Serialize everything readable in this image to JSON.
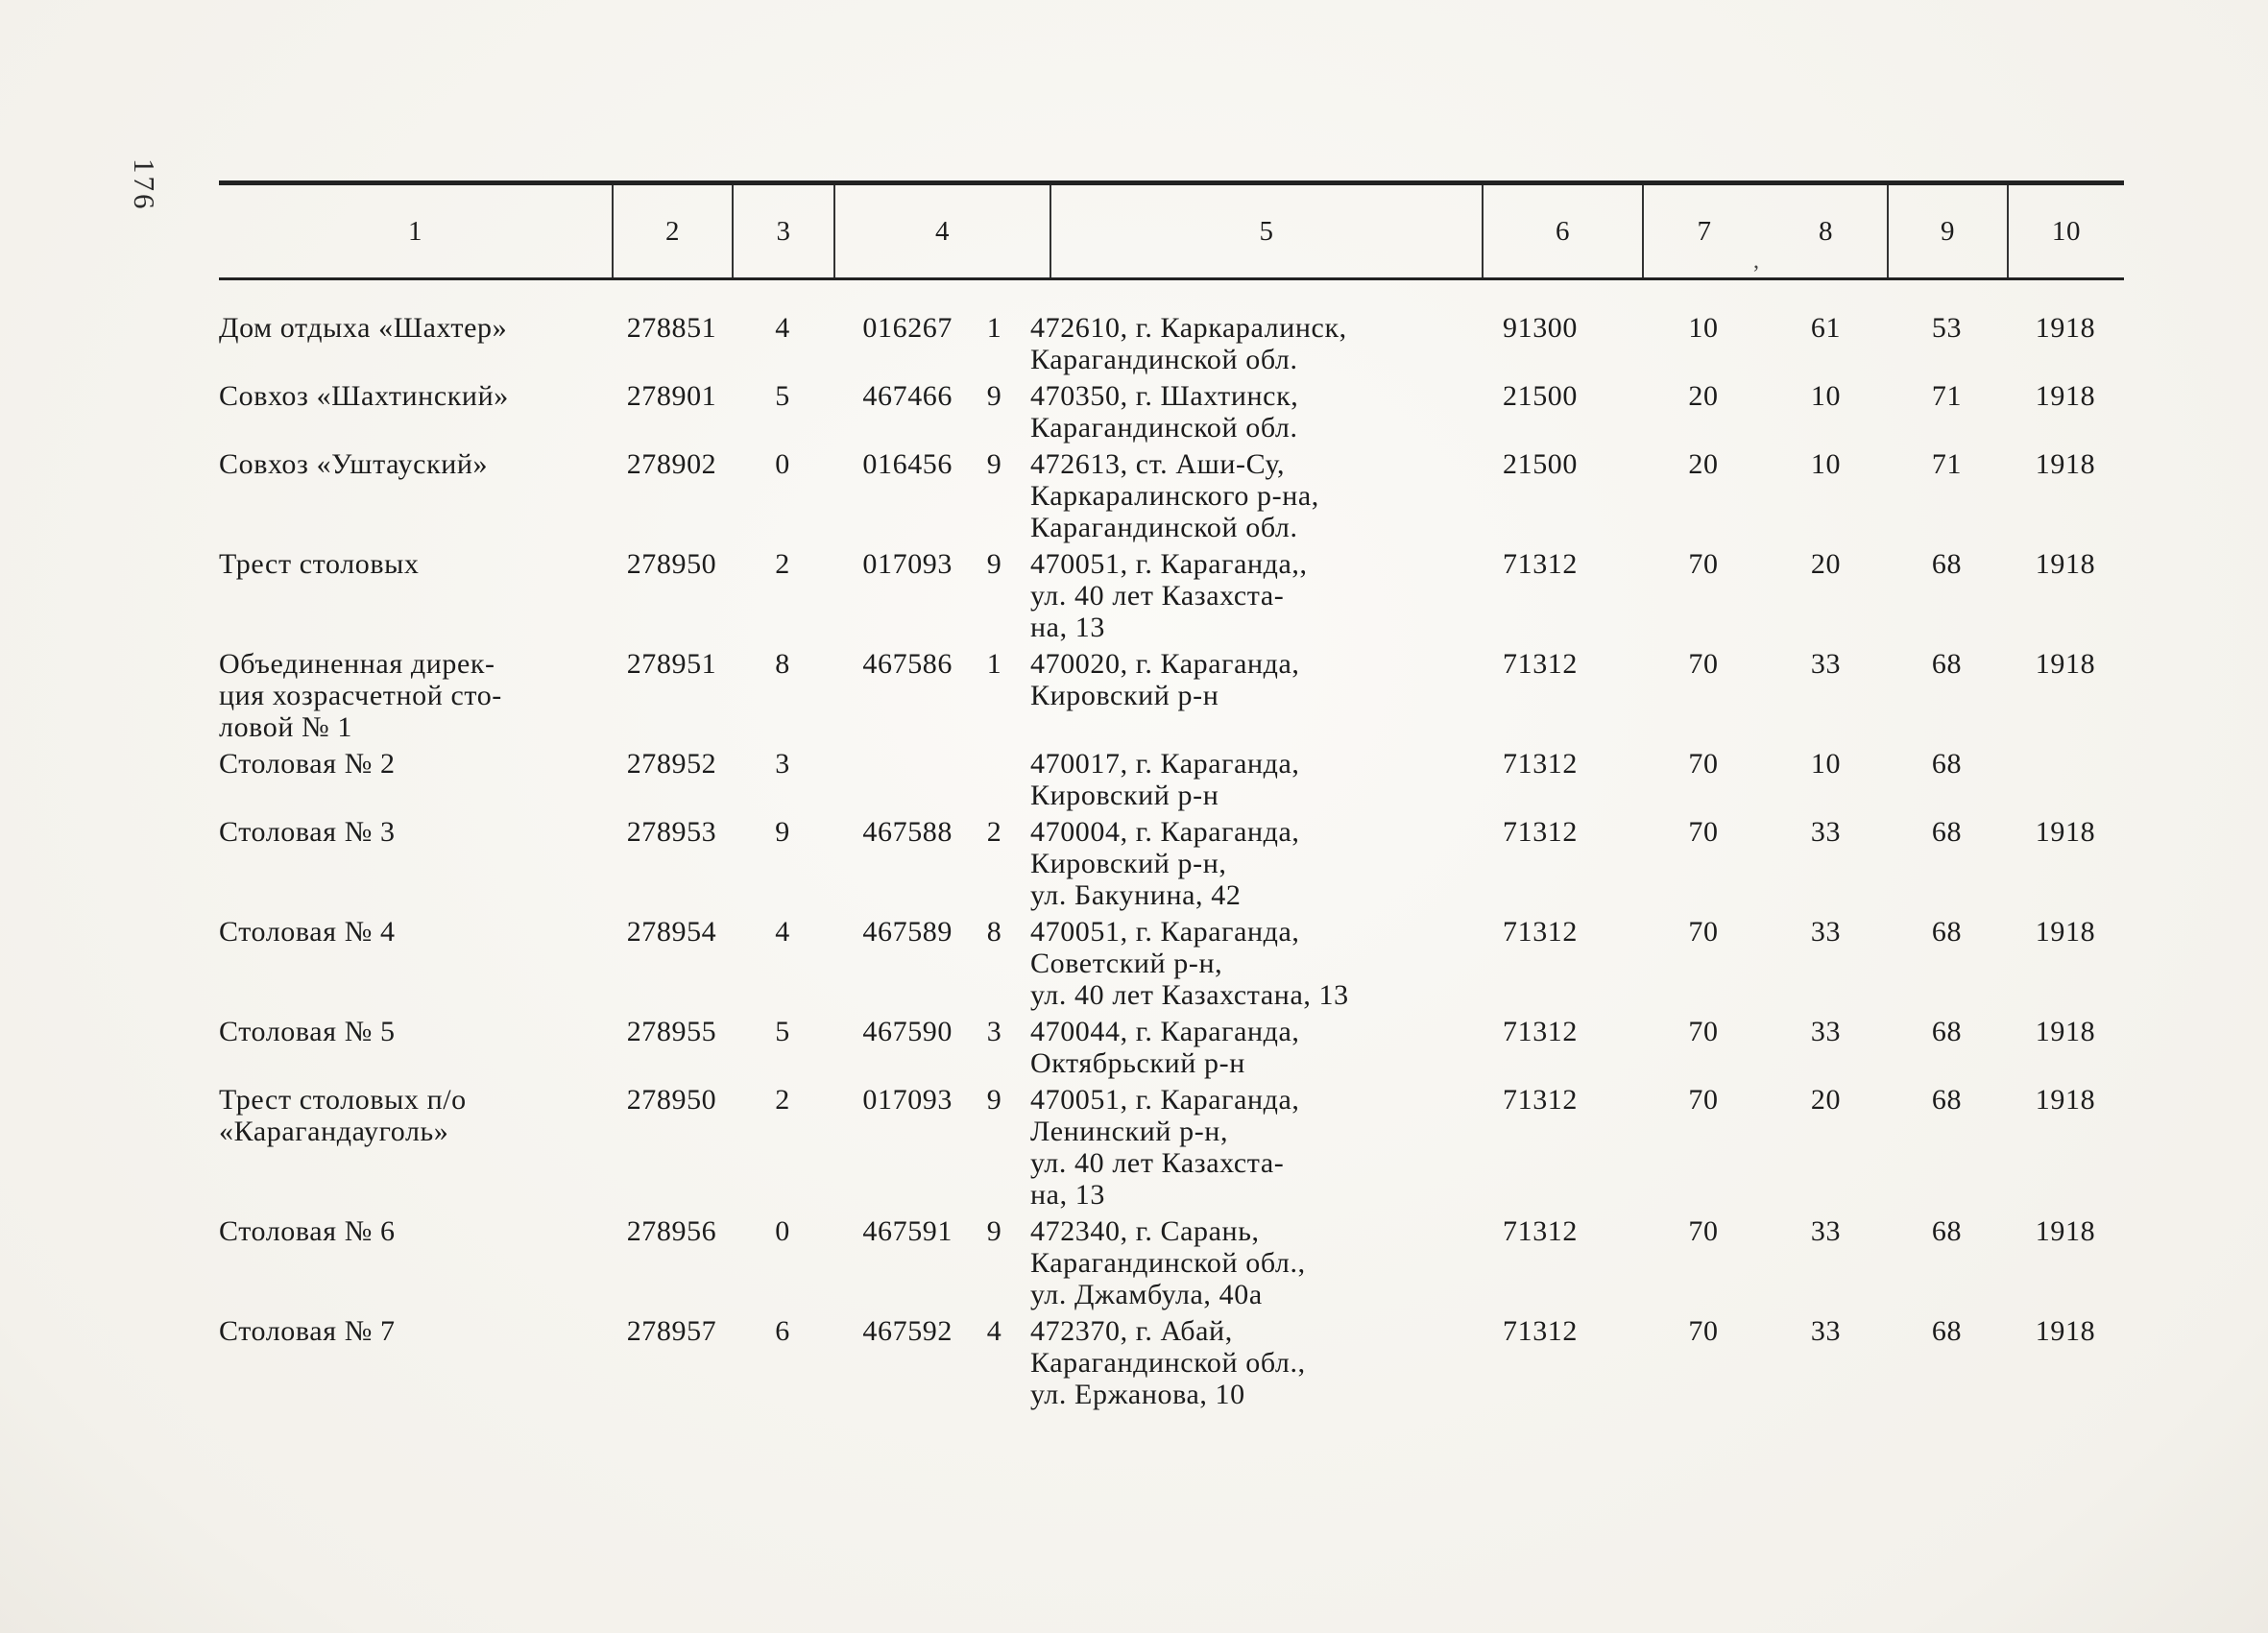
{
  "page": {
    "number": "176"
  },
  "table": {
    "header": [
      "1",
      "2",
      "3",
      "4",
      "5",
      "6",
      "7",
      "8",
      "9",
      "10"
    ],
    "header_artifact": ",",
    "rows": [
      {
        "name": [
          "Дом отдыха «Шахтер»"
        ],
        "col2": "278851",
        "col3": "4",
        "col4": "016267",
        "col4b": "1",
        "address": [
          "472610, г. Каркаралинск,",
          "Карагандинской обл."
        ],
        "col6": "91300",
        "col7": "10",
        "col8": "61",
        "col9": "53",
        "col10": "1918"
      },
      {
        "name": [
          "Совхоз «Шахтинский»"
        ],
        "col2": "278901",
        "col3": "5",
        "col4": "467466",
        "col4b": "9",
        "address": [
          "470350, г. Шахтинск,",
          "Карагандинской обл."
        ],
        "col6": "21500",
        "col7": "20",
        "col8": "10",
        "col9": "71",
        "col10": "1918"
      },
      {
        "name": [
          "Совхоз «Уштауский»"
        ],
        "col2": "278902",
        "col3": "0",
        "col4": "016456",
        "col4b": "9",
        "address": [
          "472613, ст. Аши-Су,",
          "Каркаралинского р-на,",
          "Карагандинской обл."
        ],
        "col6": "21500",
        "col7": "20",
        "col8": "10",
        "col9": "71",
        "col10": "1918"
      },
      {
        "name": [
          "Трест столовых"
        ],
        "col2": "278950",
        "col3": "2",
        "col4": "017093",
        "col4b": "9",
        "address": [
          "470051, г. Караганда,,",
          "ул. 40 лет Казахста-",
          "на, 13"
        ],
        "col6": "71312",
        "col7": "70",
        "col8": "20",
        "col9": "68",
        "col10": "1918"
      },
      {
        "name": [
          "Объединенная дирек-",
          "ция хозрасчетной сто-",
          "ловой № 1"
        ],
        "col2": "278951",
        "col3": "8",
        "col4": "467586",
        "col4b": "1",
        "address": [
          "470020, г. Караганда,",
          "Кировский р-н"
        ],
        "col6": "71312",
        "col7": "70",
        "col8": "33",
        "col9": "68",
        "col10": "1918"
      },
      {
        "name": [
          "Столовая № 2"
        ],
        "col2": "278952",
        "col3": "3",
        "col4": "",
        "col4b": "",
        "address": [
          "470017, г. Караганда,",
          "Кировский р-н"
        ],
        "col6": "71312",
        "col7": "70",
        "col8": "10",
        "col9": "68",
        "col10": ""
      },
      {
        "name": [
          "Столовая № 3"
        ],
        "col2": "278953",
        "col3": "9",
        "col4": "467588",
        "col4b": "2",
        "address": [
          "470004, г. Караганда,",
          "Кировский р-н,",
          "ул. Бакунина, 42"
        ],
        "col6": "71312",
        "col7": "70",
        "col8": "33",
        "col9": "68",
        "col10": "1918"
      },
      {
        "name": [
          "Столовая № 4"
        ],
        "col2": "278954",
        "col3": "4",
        "col4": "467589",
        "col4b": "8",
        "address": [
          "470051, г. Караганда,",
          "Советский р-н,",
          "ул. 40 лет Казахстана, 13"
        ],
        "col6": "71312",
        "col7": "70",
        "col8": "33",
        "col9": "68",
        "col10": "1918"
      },
      {
        "name": [
          "Столовая № 5"
        ],
        "col2": "278955",
        "col3": "5",
        "col4": "467590",
        "col4b": "3",
        "address": [
          "470044, г. Караганда,",
          "Октябрьский р-н"
        ],
        "col6": "71312",
        "col7": "70",
        "col8": "33",
        "col9": "68",
        "col10": "1918"
      },
      {
        "name": [
          "Трест столовых п/о",
          "«Карагандауголь»"
        ],
        "col2": "278950",
        "col3": "2",
        "col4": "017093",
        "col4b": "9",
        "address": [
          "470051, г. Караганда,",
          "Ленинский р-н,",
          "ул. 40 лет Казахста-",
          "на, 13"
        ],
        "col6": "71312",
        "col7": "70",
        "col8": "20",
        "col9": "68",
        "col10": "1918"
      },
      {
        "name": [
          "Столовая № 6"
        ],
        "col2": "278956",
        "col3": "0",
        "col4": "467591",
        "col4b": "9",
        "address": [
          "472340, г. Сарань,",
          "Карагандинской обл.,",
          "ул. Джамбула, 40а"
        ],
        "col6": "71312",
        "col7": "70",
        "col8": "33",
        "col9": "68",
        "col10": "1918"
      },
      {
        "name": [
          "Столовая № 7"
        ],
        "col2": "278957",
        "col3": "6",
        "col4": "467592",
        "col4b": "4",
        "address": [
          "472370, г. Абай,",
          "Карагандинской обл.,",
          "ул. Ержанова, 10"
        ],
        "col6": "71312",
        "col7": "70",
        "col8": "33",
        "col9": "68",
        "col10": "1918"
      }
    ]
  }
}
